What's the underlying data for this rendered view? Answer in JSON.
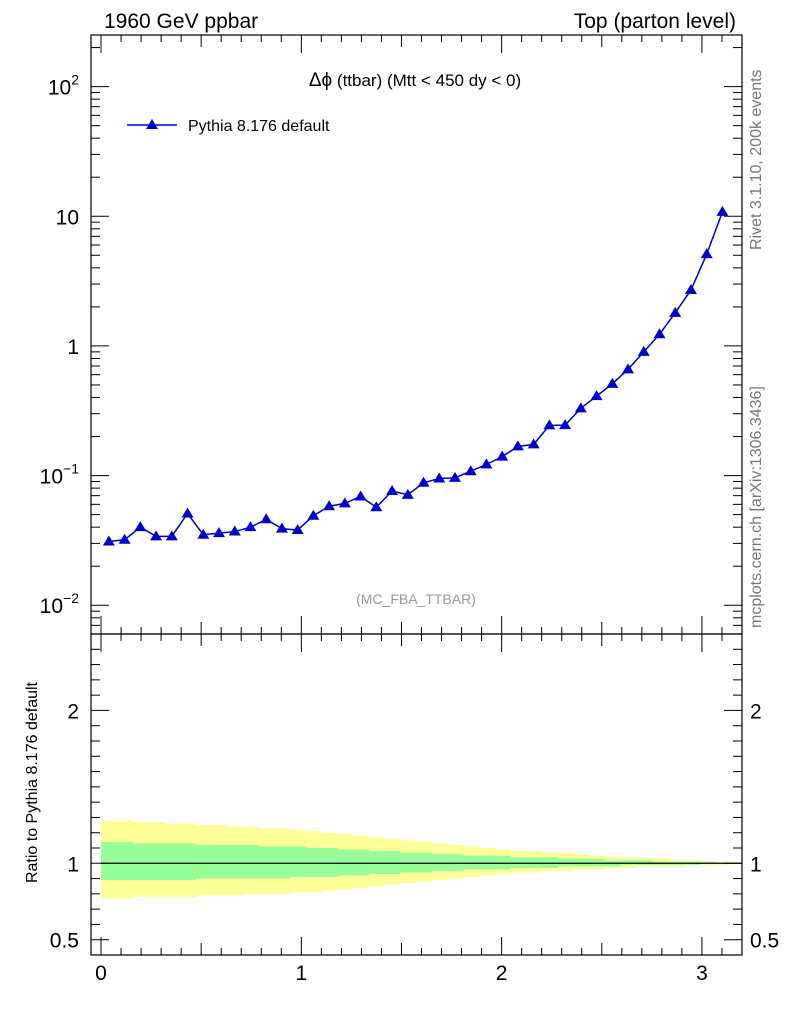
{
  "header": {
    "left": "1960 GeV ppbar",
    "right": "Top (parton level)"
  },
  "side_labels": {
    "rivet": "Rivet 3.1.10,  200k events",
    "mcplots": "mcplots.cern.ch [arXiv:1306.3436]"
  },
  "chart_data": [
    {
      "type": "line",
      "title": "Δϕ (ttbar) (Mtt < 450 dy < 0)",
      "title_symbol": "Δϕ",
      "title_rest": " (ttbar) (Mtt < 450 dy < 0)",
      "watermark": "(MC_FBA_TTBAR)",
      "yscale": "log",
      "xlim": [
        -0.05,
        3.2
      ],
      "ylim": [
        0.006,
        250
      ],
      "grid": false,
      "legend_placement": "top-left",
      "y_ticks": [
        {
          "value": 0.01,
          "base": "10",
          "exp": "−2"
        },
        {
          "value": 0.1,
          "base": "10",
          "exp": "−1"
        },
        {
          "value": 1,
          "base": "1",
          "exp": ""
        },
        {
          "value": 10,
          "base": "10",
          "exp": ""
        },
        {
          "value": 100,
          "base": "10",
          "exp": "2"
        }
      ],
      "series": [
        {
          "name": "Pythia 8.176 default",
          "color": "#0000cc",
          "marker": "triangle",
          "x": [
            0.0393,
            0.1178,
            0.1963,
            0.2749,
            0.3534,
            0.432,
            0.5105,
            0.589,
            0.6676,
            0.7461,
            0.8247,
            0.9032,
            0.9817,
            1.0603,
            1.1388,
            1.2174,
            1.2959,
            1.3744,
            1.453,
            1.5315,
            1.6101,
            1.6886,
            1.7671,
            1.8457,
            1.9242,
            2.0028,
            2.0813,
            2.1598,
            2.2384,
            2.3169,
            2.3955,
            2.474,
            2.5525,
            2.6311,
            2.7096,
            2.7882,
            2.8667,
            2.9452,
            3.0238,
            3.1023
          ],
          "y": [
            0.031,
            0.032,
            0.04,
            0.034,
            0.034,
            0.051,
            0.035,
            0.036,
            0.037,
            0.04,
            0.046,
            0.039,
            0.038,
            0.049,
            0.058,
            0.061,
            0.069,
            0.057,
            0.076,
            0.071,
            0.088,
            0.095,
            0.096,
            0.108,
            0.122,
            0.14,
            0.168,
            0.174,
            0.244,
            0.245,
            0.33,
            0.41,
            0.51,
            0.66,
            0.9,
            1.23,
            1.8,
            2.7,
            5.1,
            10.8
          ],
          "yerr_rel": [
            0.09,
            0.09,
            0.09,
            0.09,
            0.09,
            0.09,
            0.09,
            0.09,
            0.08,
            0.08,
            0.08,
            0.08,
            0.08,
            0.08,
            0.07,
            0.07,
            0.06,
            0.06,
            0.06,
            0.05,
            0.05,
            0.05,
            0.04,
            0.04,
            0.04,
            0.04,
            0.03,
            0.03,
            0.03,
            0.03,
            0.02,
            0.02,
            0.02,
            0.02,
            0.01,
            0.01,
            0.01,
            0.01,
            0.01,
            0.01
          ]
        }
      ]
    },
    {
      "type": "area",
      "ylabel": "Ratio to Pythia 8.176 default",
      "xlim": [
        -0.05,
        3.2
      ],
      "ylim": [
        0.4,
        2.5
      ],
      "y_ticks": [
        0.5,
        1,
        2
      ],
      "y_tick_labels": [
        "0.5",
        "1",
        "2"
      ],
      "x_ticks": [
        0,
        1,
        2,
        3
      ],
      "x_tick_labels": [
        "0",
        "1",
        "2",
        "3"
      ],
      "reference_line": 1,
      "bands": [
        {
          "name": "2sigma",
          "color": "#ffff99",
          "lo": [
            0.77,
            0.77,
            0.78,
            0.78,
            0.78,
            0.78,
            0.79,
            0.79,
            0.79,
            0.8,
            0.8,
            0.8,
            0.81,
            0.81,
            0.82,
            0.83,
            0.84,
            0.85,
            0.86,
            0.87,
            0.88,
            0.89,
            0.9,
            0.91,
            0.92,
            0.93,
            0.94,
            0.94,
            0.95,
            0.95,
            0.96,
            0.96,
            0.97,
            0.97,
            0.98,
            0.98,
            0.98,
            0.99,
            0.99,
            0.99
          ],
          "hi": [
            1.28,
            1.28,
            1.27,
            1.27,
            1.26,
            1.26,
            1.25,
            1.25,
            1.24,
            1.24,
            1.23,
            1.23,
            1.22,
            1.21,
            1.2,
            1.19,
            1.18,
            1.17,
            1.16,
            1.15,
            1.14,
            1.13,
            1.12,
            1.11,
            1.1,
            1.09,
            1.08,
            1.08,
            1.07,
            1.07,
            1.06,
            1.05,
            1.04,
            1.04,
            1.03,
            1.03,
            1.02,
            1.02,
            1.01,
            1.01
          ]
        },
        {
          "name": "1sigma",
          "color": "#99ff99",
          "lo": [
            0.89,
            0.89,
            0.89,
            0.89,
            0.89,
            0.89,
            0.9,
            0.9,
            0.9,
            0.9,
            0.9,
            0.9,
            0.91,
            0.91,
            0.91,
            0.92,
            0.92,
            0.93,
            0.93,
            0.94,
            0.94,
            0.95,
            0.95,
            0.96,
            0.96,
            0.96,
            0.97,
            0.97,
            0.97,
            0.98,
            0.98,
            0.98,
            0.98,
            0.99,
            0.99,
            0.99,
            0.99,
            0.99,
            1.0,
            1.0
          ],
          "hi": [
            1.14,
            1.14,
            1.13,
            1.13,
            1.13,
            1.13,
            1.12,
            1.12,
            1.12,
            1.12,
            1.11,
            1.11,
            1.11,
            1.1,
            1.1,
            1.09,
            1.09,
            1.08,
            1.08,
            1.07,
            1.07,
            1.06,
            1.06,
            1.05,
            1.05,
            1.05,
            1.04,
            1.04,
            1.04,
            1.03,
            1.03,
            1.03,
            1.02,
            1.02,
            1.02,
            1.01,
            1.01,
            1.01,
            1.01,
            1.0
          ]
        }
      ]
    }
  ]
}
